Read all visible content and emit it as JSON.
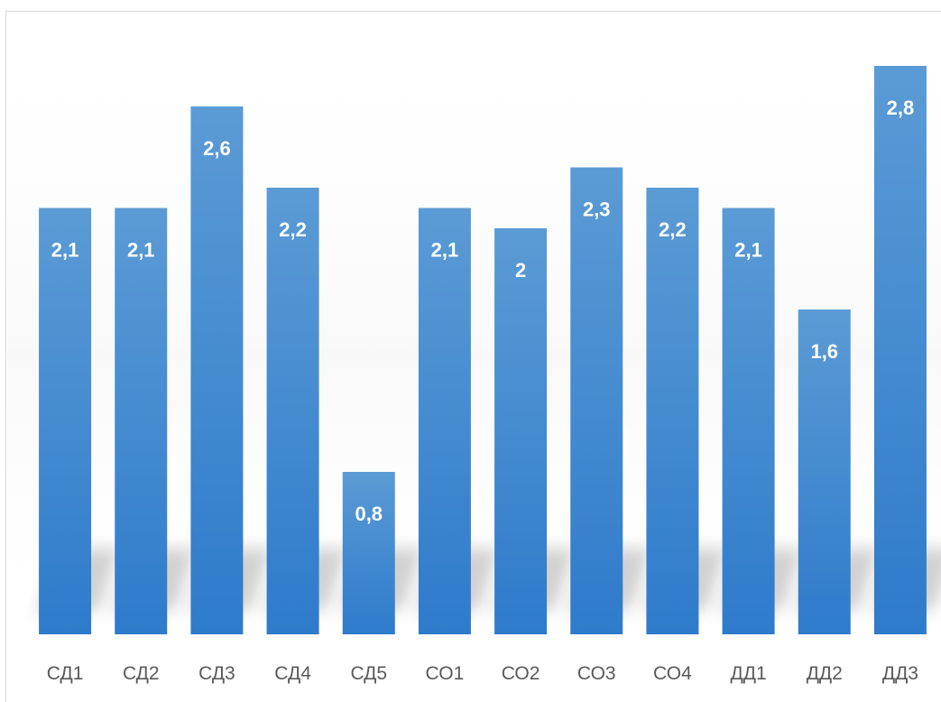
{
  "chart_data": {
    "type": "bar",
    "title": "",
    "xlabel": "",
    "ylabel": "",
    "categories": [
      "СД1",
      "СД2",
      "СД3",
      "СД4",
      "СД5",
      "СО1",
      "СО2",
      "СО3",
      "СО4",
      "ДД1",
      "ДД2",
      "ДД3"
    ],
    "values": [
      2.1,
      2.1,
      2.6,
      2.2,
      0.8,
      2.1,
      2,
      2.3,
      2.2,
      2.1,
      1.6,
      2.8
    ],
    "value_labels": [
      "2,1",
      "2,1",
      "2,6",
      "2,2",
      "0,8",
      "2,1",
      "2",
      "2,3",
      "2,2",
      "2,1",
      "1,6",
      "2,8"
    ],
    "ylim": [
      0,
      3
    ],
    "grid": false,
    "legend": "none",
    "colors": {
      "bar_top": "#5b9bd5",
      "bar_bottom": "#2e7bcb",
      "label_text": "#ffffff",
      "tick_text": "#595959"
    }
  }
}
